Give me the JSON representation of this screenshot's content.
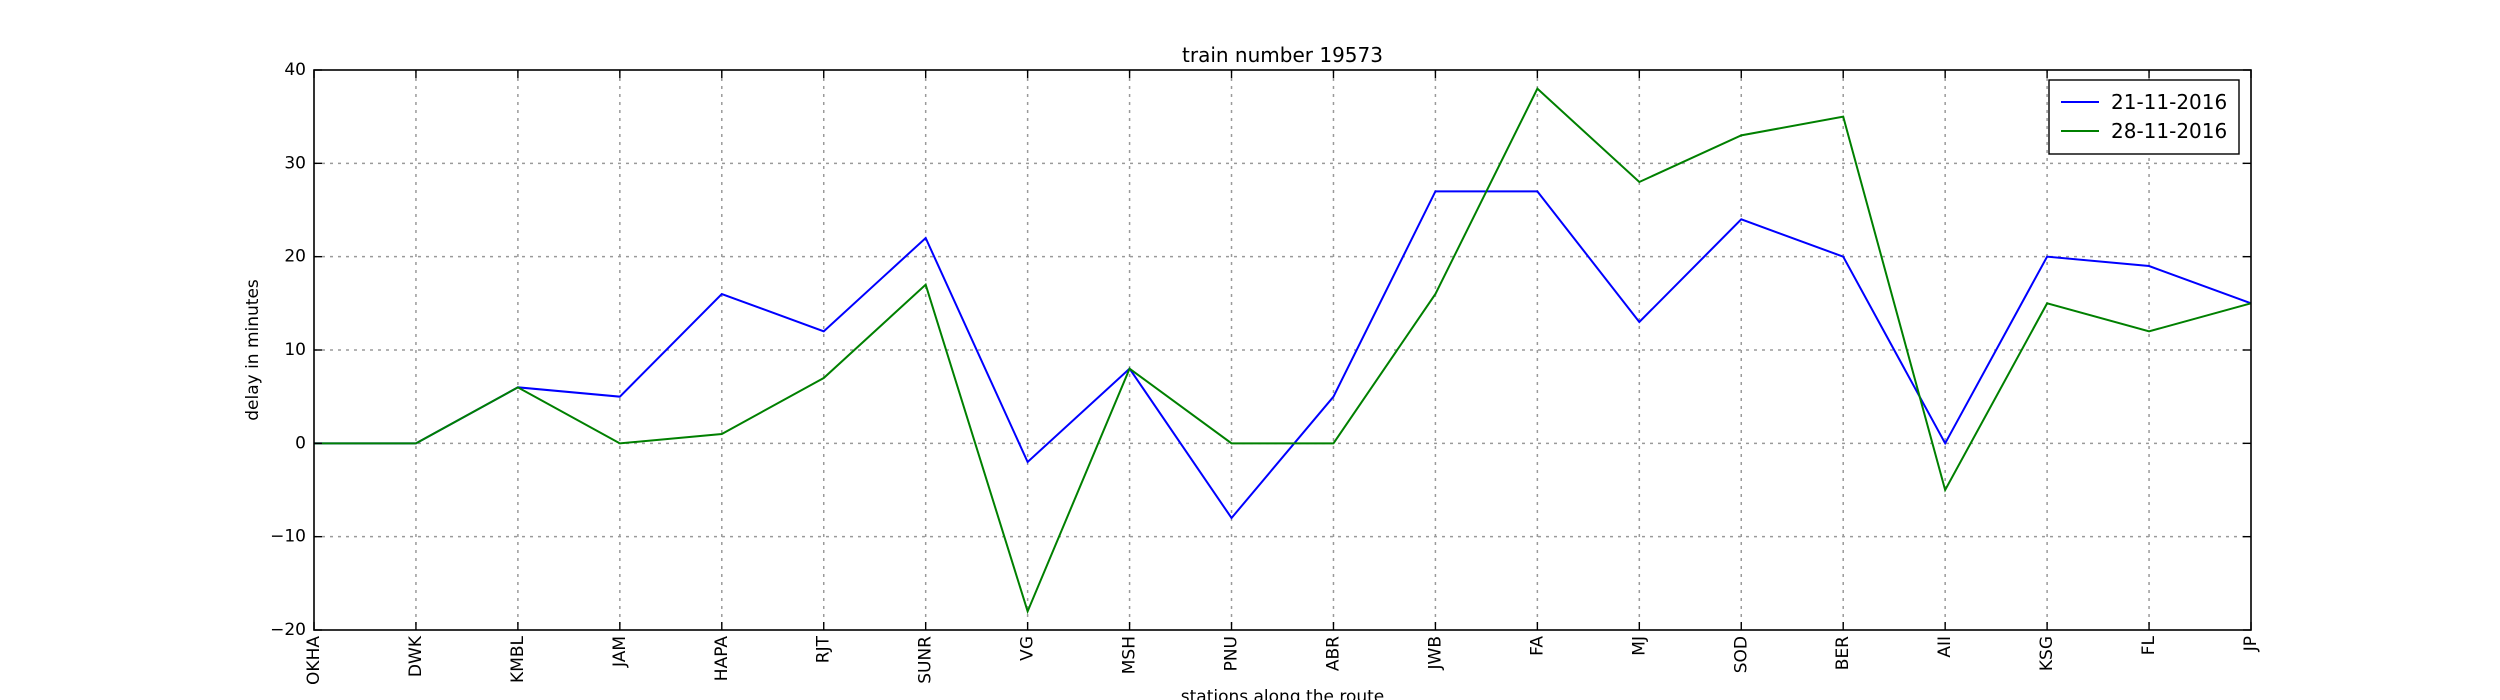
{
  "chart_data": {
    "type": "line",
    "title": "train number 19573",
    "xlabel": "stations along the route",
    "ylabel": "delay in minutes",
    "categories": [
      "OKHA",
      "DWK",
      "KMBL",
      "JAM",
      "HAPA",
      "RJT",
      "SUNR",
      "VG",
      "MSH",
      "PNU",
      "ABR",
      "JWB",
      "FA",
      "MJ",
      "SOD",
      "BER",
      "AII",
      "KSG",
      "FL",
      "JP"
    ],
    "ylim": [
      -20,
      40
    ],
    "yticks": [
      -20,
      -10,
      0,
      10,
      20,
      30,
      40
    ],
    "ytick_labels": [
      "−20",
      "−10",
      "0",
      "10",
      "20",
      "30",
      "40"
    ],
    "grid": true,
    "legend_position": "top-right",
    "series": [
      {
        "name": "21-11-2016",
        "color": "#0000ff",
        "values": [
          0,
          0,
          6,
          5,
          16,
          12,
          22,
          -2,
          8,
          -8,
          5,
          27,
          27,
          13,
          24,
          20,
          0,
          20,
          19,
          15
        ]
      },
      {
        "name": "28-11-2016",
        "color": "#008000",
        "values": [
          0,
          0,
          6,
          0,
          1,
          7,
          17,
          -18,
          8,
          0,
          0,
          16,
          38,
          28,
          33,
          35,
          -5,
          15,
          12,
          15
        ]
      }
    ]
  }
}
